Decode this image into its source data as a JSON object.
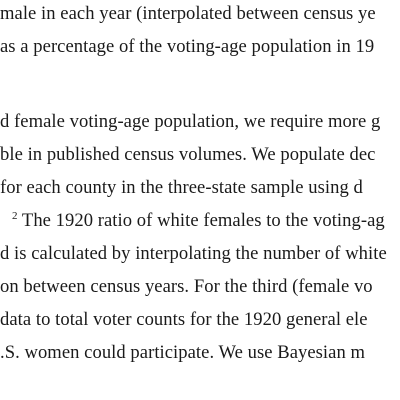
{
  "paragraph1": {
    "lines": [
      "male in each year (interpolated between census ye",
      "as a percentage of the voting-age population in 19"
    ]
  },
  "paragraph2": {
    "lines": [
      "d female voting-age population, we require more g",
      "ble in published census volumes.  We populate dec",
      " for each county in the three-state sample using d"
    ],
    "footnote_marker": "2",
    "line4_text": " The 1920 ratio of white females to the voting-ag",
    "lines_after": [
      "d is calculated by interpolating the number of white",
      "on between census years.  For the third (female vo",
      " data to total voter counts for the 1920 general ele",
      ".S. women could participate.  We use Bayesian m"
    ]
  }
}
